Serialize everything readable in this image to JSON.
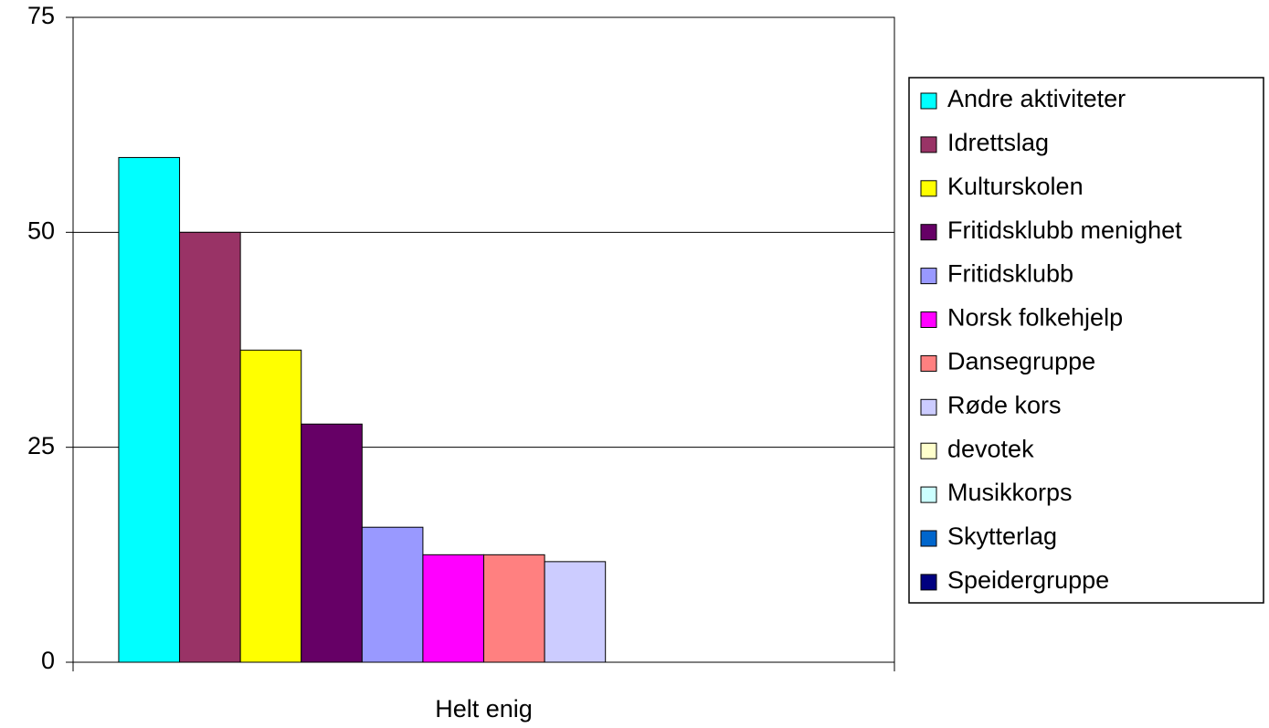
{
  "chart_data": {
    "type": "bar",
    "categories": [
      "Helt enig"
    ],
    "series": [
      {
        "name": "Andre aktiviteter",
        "color": "#00ffff",
        "values": [
          58.7
        ]
      },
      {
        "name": "Idrettslag",
        "color": "#993366",
        "values": [
          50
        ]
      },
      {
        "name": "Kulturskolen",
        "color": "#ffff00",
        "values": [
          36.3
        ]
      },
      {
        "name": "Fritidsklubb menighet",
        "color": "#660066",
        "values": [
          27.7
        ]
      },
      {
        "name": "Fritidsklubb",
        "color": "#9999ff",
        "values": [
          15.7
        ]
      },
      {
        "name": "Norsk folkehjelp",
        "color": "#ff00ff",
        "values": [
          12.5
        ]
      },
      {
        "name": "Dansegruppe",
        "color": "#ff8080",
        "values": [
          12.5
        ]
      },
      {
        "name": "Røde kors",
        "color": "#ccccff",
        "values": [
          11.7
        ]
      },
      {
        "name": "devotek",
        "color": "#ffffcc",
        "values": [
          0
        ]
      },
      {
        "name": "Musikkorps",
        "color": "#ccffff",
        "values": [
          0
        ]
      },
      {
        "name": "Skytterlag",
        "color": "#0066cc",
        "values": [
          0
        ]
      },
      {
        "name": "Speidergruppe",
        "color": "#000080",
        "values": [
          0
        ]
      }
    ],
    "ylim": [
      0,
      75
    ],
    "yticks": [
      0,
      25,
      50,
      75
    ],
    "grid": true,
    "legend": "right"
  }
}
